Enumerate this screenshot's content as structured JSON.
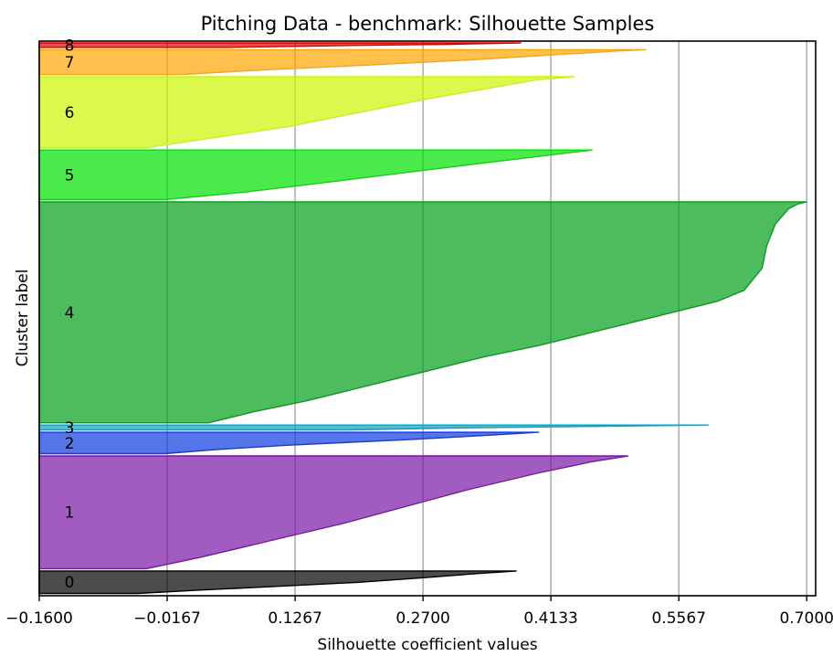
{
  "chart_data": {
    "type": "area",
    "title": "Pitching Data - benchmark: Silhouette Samples",
    "xlabel": "Silhouette coefficient values",
    "ylabel": "Cluster label",
    "xlim": [
      -0.16,
      0.71
    ],
    "ylim": [
      -10,
      2450
    ],
    "xticks": [
      {
        "value": -0.16,
        "label": "−0.1600"
      },
      {
        "value": -0.0167,
        "label": "−0.0167"
      },
      {
        "value": 0.1267,
        "label": "0.1267"
      },
      {
        "value": 0.27,
        "label": "0.2700"
      },
      {
        "value": 0.4133,
        "label": "0.4133"
      },
      {
        "value": 0.5567,
        "label": "0.5567"
      },
      {
        "value": 0.7,
        "label": "0.7000"
      }
    ],
    "grid": "vertical",
    "baseline": -0.16,
    "clusters": [
      {
        "label": "0",
        "color": "#000000",
        "start": 0,
        "size": 100,
        "profile": [
          [
            0,
            0.375
          ],
          [
            0.12,
            0.33
          ],
          [
            0.3,
            0.27
          ],
          [
            0.5,
            0.2
          ],
          [
            0.7,
            0.1
          ],
          [
            0.85,
            0.02
          ],
          [
            1,
            -0.05
          ]
        ]
      },
      {
        "label": "1",
        "color": "#7b16a7",
        "start": 110,
        "size": 500,
        "profile": [
          [
            0,
            0.5
          ],
          [
            0.05,
            0.46
          ],
          [
            0.15,
            0.4
          ],
          [
            0.3,
            0.32
          ],
          [
            0.45,
            0.25
          ],
          [
            0.6,
            0.18
          ],
          [
            0.75,
            0.1
          ],
          [
            0.9,
            0.02
          ],
          [
            1,
            -0.04
          ]
        ]
      },
      {
        "label": "2",
        "color": "#0e3be0",
        "start": 620,
        "size": 95,
        "profile": [
          [
            0,
            0.4
          ],
          [
            0.15,
            0.34
          ],
          [
            0.35,
            0.25
          ],
          [
            0.6,
            0.12
          ],
          [
            0.8,
            0.04
          ],
          [
            1,
            -0.02
          ]
        ]
      },
      {
        "label": "3",
        "color": "#0aa2c0",
        "start": 725,
        "size": 22,
        "profile": [
          [
            0,
            0.59
          ],
          [
            0.3,
            0.45
          ],
          [
            0.6,
            0.3
          ],
          [
            1,
            0.18
          ]
        ]
      },
      {
        "label": "4",
        "color": "#00a01a",
        "start": 757,
        "size": 980,
        "profile": [
          [
            0,
            0.7
          ],
          [
            0.01,
            0.69
          ],
          [
            0.03,
            0.68
          ],
          [
            0.1,
            0.665
          ],
          [
            0.2,
            0.655
          ],
          [
            0.3,
            0.65
          ],
          [
            0.35,
            0.64
          ],
          [
            0.4,
            0.63
          ],
          [
            0.45,
            0.6
          ],
          [
            0.5,
            0.55
          ],
          [
            0.55,
            0.5
          ],
          [
            0.6,
            0.45
          ],
          [
            0.65,
            0.4
          ],
          [
            0.7,
            0.34
          ],
          [
            0.75,
            0.29
          ],
          [
            0.8,
            0.24
          ],
          [
            0.85,
            0.19
          ],
          [
            0.9,
            0.14
          ],
          [
            0.95,
            0.08
          ],
          [
            1,
            0.03
          ]
        ]
      },
      {
        "label": "5",
        "color": "#00e000",
        "start": 1747,
        "size": 220,
        "profile": [
          [
            0,
            0.46
          ],
          [
            0.04,
            0.44
          ],
          [
            0.15,
            0.39
          ],
          [
            0.3,
            0.32
          ],
          [
            0.5,
            0.23
          ],
          [
            0.7,
            0.14
          ],
          [
            0.85,
            0.07
          ],
          [
            1,
            -0.02
          ]
        ]
      },
      {
        "label": "6",
        "color": "#ccf500",
        "start": 1977,
        "size": 315,
        "profile": [
          [
            0,
            0.44
          ],
          [
            0.04,
            0.4
          ],
          [
            0.15,
            0.35
          ],
          [
            0.3,
            0.28
          ],
          [
            0.5,
            0.2
          ],
          [
            0.7,
            0.12
          ],
          [
            0.85,
            0.04
          ],
          [
            1,
            -0.04
          ]
        ]
      },
      {
        "label": "7",
        "color": "#ffa500",
        "start": 2302,
        "size": 110,
        "profile": [
          [
            0,
            0.52
          ],
          [
            0.05,
            0.49
          ],
          [
            0.2,
            0.42
          ],
          [
            0.4,
            0.33
          ],
          [
            0.6,
            0.22
          ],
          [
            0.8,
            0.1
          ],
          [
            1,
            0.0
          ]
        ]
      },
      {
        "label": "8",
        "color": "#e00000",
        "start": 2422,
        "size": 20,
        "profile": [
          [
            0,
            0.38
          ],
          [
            0.3,
            0.3
          ],
          [
            0.6,
            0.18
          ],
          [
            1,
            0.05
          ]
        ]
      }
    ]
  }
}
